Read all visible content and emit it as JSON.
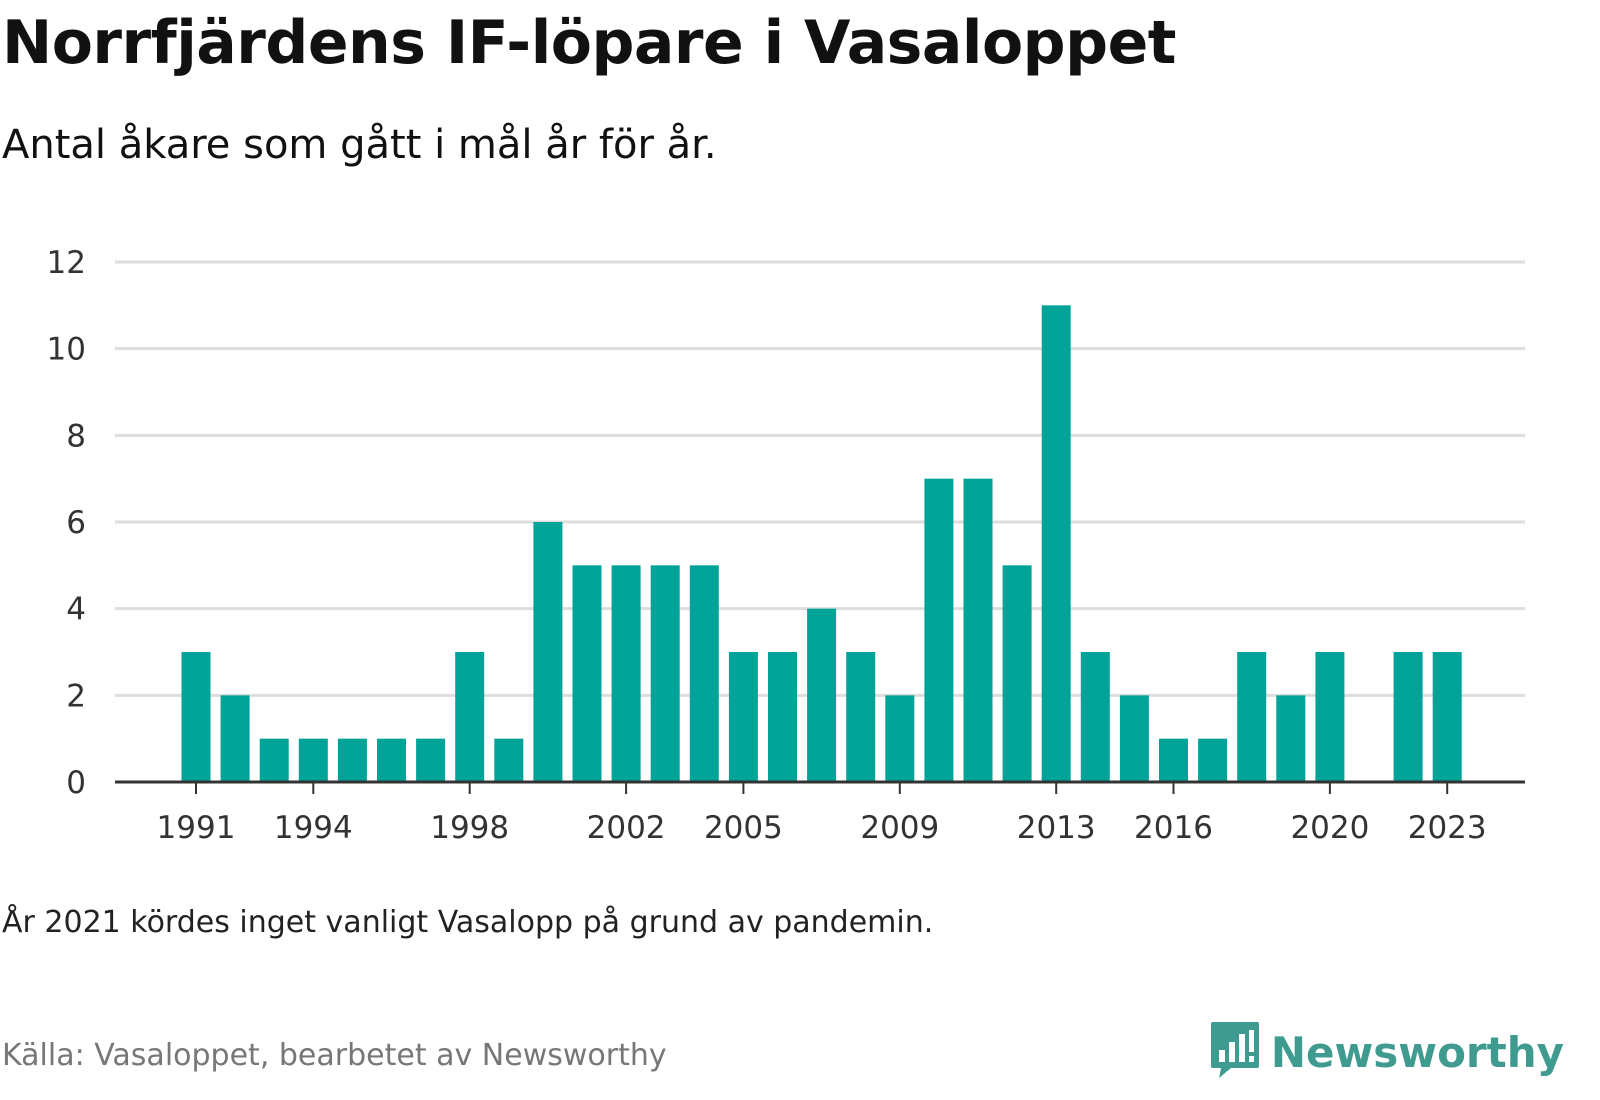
{
  "title": "Norrfjärdens IF-löpare i Vasaloppet",
  "subtitle": "Antal åkare som gått i mål år för år.",
  "note": "År 2021 kördes inget vanligt Vasalopp på grund av pandemin.",
  "source": "Källa: Vasaloppet, bearbetet av Newsworthy",
  "brand": {
    "name": "Newsworthy",
    "icon": "newsworthy-logo-icon",
    "color": "#3f9a90"
  },
  "chart_data": {
    "type": "bar",
    "color": "#00a398",
    "gridline_color": "#dddddd",
    "baseline_color": "#333333",
    "ylim": [
      0,
      12
    ],
    "yticks": [
      0,
      2,
      4,
      6,
      8,
      10,
      12
    ],
    "xtick_labels": [
      "1991",
      "1994",
      "1998",
      "2002",
      "2005",
      "2009",
      "2013",
      "2016",
      "2020",
      "2023"
    ],
    "categories": [
      1991,
      1992,
      1993,
      1994,
      1995,
      1996,
      1997,
      1998,
      1999,
      2000,
      2001,
      2002,
      2003,
      2004,
      2005,
      2006,
      2007,
      2008,
      2009,
      2010,
      2011,
      2012,
      2013,
      2014,
      2015,
      2016,
      2017,
      2018,
      2019,
      2020,
      2021,
      2022,
      2023
    ],
    "values": [
      3,
      2,
      1,
      1,
      1,
      1,
      1,
      3,
      1,
      6,
      5,
      5,
      5,
      5,
      3,
      3,
      4,
      3,
      2,
      7,
      7,
      5,
      11,
      3,
      2,
      1,
      1,
      3,
      2,
      3,
      0,
      3,
      3
    ]
  }
}
